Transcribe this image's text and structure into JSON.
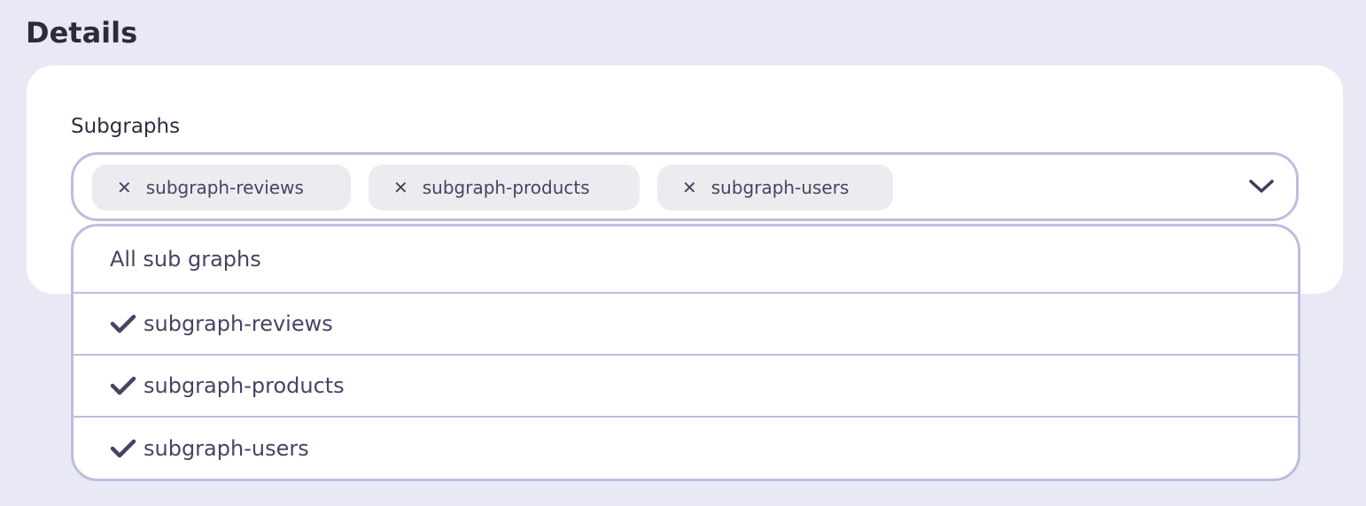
{
  "page_title": "Details",
  "field": {
    "label": "Subgraphs",
    "selected": [
      "subgraph-reviews",
      "subgraph-products",
      "subgraph-users"
    ],
    "remove_icon": "x-icon",
    "toggle_icon": "chevron-down-icon"
  },
  "dropdown": {
    "all_option": "All sub graphs",
    "options": [
      {
        "label": "subgraph-reviews",
        "checked": true
      },
      {
        "label": "subgraph-products",
        "checked": true
      },
      {
        "label": "subgraph-users",
        "checked": true
      }
    ]
  },
  "colors": {
    "background": "#e9e9f5",
    "border": "#bcbde0",
    "chip": "#ececf0",
    "text": "#454563"
  }
}
